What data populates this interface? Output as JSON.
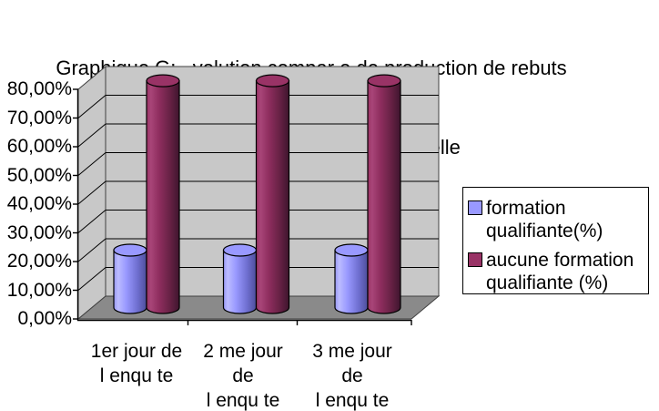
{
  "title": {
    "line1": "Graphique G:   volution compar e de production de rebuts",
    "line2": "selon la formation professionnelle"
  },
  "chart_data": {
    "type": "bar",
    "subtype": "3d-cylinder",
    "title": "Graphique G:   volution compar e de production de rebuts selon la formation professionnelle",
    "categories": [
      "1er jour de l enqu te",
      "2 me jour de l enqu te",
      "3 me jour de l enqu te"
    ],
    "category_display": [
      "1er  jour de\nl enqu te",
      "2 me jour\nde\nl enqu te",
      "3 me jour\nde\nl enqu te"
    ],
    "series": [
      {
        "name": "formation qualifiante(%)",
        "color": "#9999FF",
        "values": [
          20,
          20,
          20
        ]
      },
      {
        "name": "aucune formation qualifiante (%)",
        "color": "#993366",
        "values": [
          79,
          79,
          79
        ]
      }
    ],
    "ylim": [
      0,
      80
    ],
    "y_tick_step": 10,
    "y_tick_labels": [
      "0,00%",
      "10,00%",
      "20,00%",
      "30,00%",
      "40,00%",
      "50,00%",
      "60,00%",
      "70,00%",
      "80,00%"
    ],
    "grid": true,
    "legend_position": "right",
    "colors": {
      "wall": "#C8C8C8",
      "floor": "#8A8A8A",
      "gridline": "#000000",
      "series1_highlight": "#BCBCFF",
      "series1_shadow": "#4E4E9B",
      "series2_highlight": "#A84578",
      "series2_shadow": "#3F152E"
    }
  }
}
